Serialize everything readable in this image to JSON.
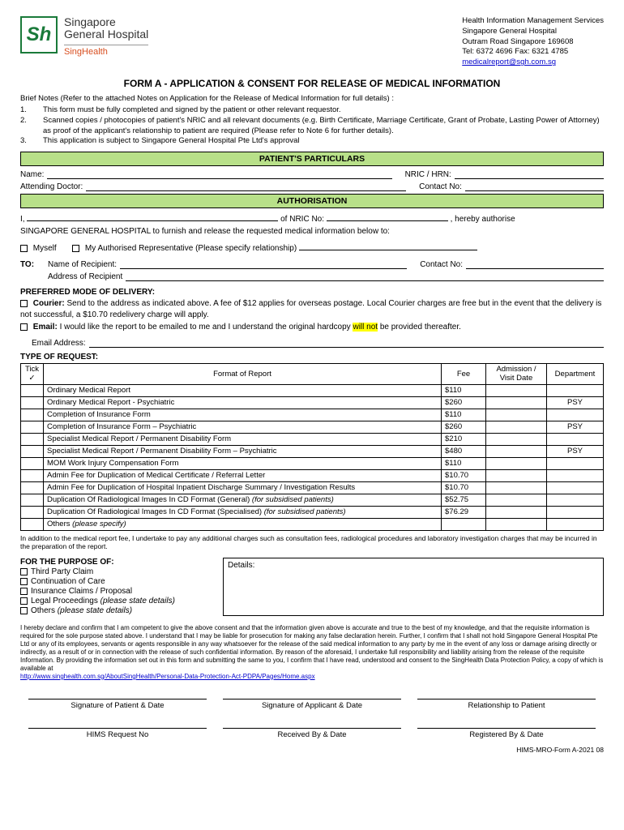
{
  "header": {
    "org_line1": "Singapore",
    "org_line2": "General Hospital",
    "org_sub": "SingHealth",
    "right_l1": "Health Information Management Services",
    "right_l2": "Singapore General Hospital",
    "right_l3": "Outram Road Singapore 169608",
    "right_l4": "Tel: 6372 4696 Fax: 6321 4785",
    "right_email": "medicalreport@sgh.com.sg"
  },
  "title": "FORM A - APPLICATION & CONSENT FOR RELEASE OF MEDICAL INFORMATION",
  "brief": {
    "intro": "Brief Notes (Refer to the attached Notes on Application for the Release of Medical Information for full details) :",
    "n1": "This form must be fully completed and signed by the patient or other relevant requestor.",
    "n2": "Scanned copies / photocopies of patient's NRIC and all relevant documents (e.g. Birth Certificate, Marriage Certificate, Grant of Probate, Lasting Power of Attorney) as proof of the applicant's relationship to patient are required (Please refer to Note 6 for further details).",
    "n3": "This application is subject to Singapore General Hospital Pte Ltd's approval"
  },
  "sections": {
    "particulars": "PATIENT'S PARTICULARS",
    "authorisation": "AUTHORISATION"
  },
  "labels": {
    "name": "Name:",
    "nric_hrn": "NRIC / HRN:",
    "attending": "Attending Doctor:",
    "contact": "Contact No:",
    "auth_prefix": "I,",
    "auth_of_nric": "of NRIC No:",
    "auth_suffix": ", hereby authorise",
    "auth_body": "SINGAPORE GENERAL HOSPITAL to furnish and release the requested medical information below to:",
    "myself": "Myself",
    "authrep": "My Authorised Representative (Please specify relationship)",
    "to": "TO:",
    "recipient_name": "Name of Recipient:",
    "recipient_addr": "Address of Recipient",
    "email_addr": "Email Address:"
  },
  "delivery": {
    "hdr": "PREFERRED MODE OF DELIVERY:",
    "courier_label": "Courier:",
    "courier_text": " Send to the address as indicated above. A fee of $12 applies for overseas postage. Local Courier charges are free but in the event that the delivery is not successful, a $10.70 redelivery charge will apply.",
    "email_label": "Email:",
    "email_text_a": " I would like the report to be emailed to me and I understand the original hardcopy ",
    "email_highlight": "will not",
    "email_text_b": " be provided thereafter."
  },
  "request": {
    "hdr": "TYPE OF REQUEST:",
    "cols": {
      "tick": "Tick\n✓",
      "format": "Format of Report",
      "fee": "Fee",
      "date": "Admission / Visit Date",
      "dept": "Department"
    },
    "rows": [
      {
        "format": "Ordinary Medical Report",
        "fee": "$110",
        "dept": ""
      },
      {
        "format": "Ordinary Medical Report  - Psychiatric",
        "fee": "$260",
        "dept": "PSY"
      },
      {
        "format": "Completion of Insurance Form",
        "fee": "$110",
        "dept": ""
      },
      {
        "format": "Completion of Insurance Form – Psychiatric",
        "fee": "$260",
        "dept": "PSY"
      },
      {
        "format": "Specialist Medical Report / Permanent Disability Form",
        "fee": "$210",
        "dept": ""
      },
      {
        "format": "Specialist Medical Report / Permanent Disability Form – Psychiatric",
        "fee": "$480",
        "dept": "PSY"
      },
      {
        "format": "MOM Work Injury Compensation Form",
        "fee": "$110",
        "dept": ""
      },
      {
        "format": "Admin Fee for Duplication of Medical Certificate / Referral Letter",
        "fee": "$10.70",
        "dept": ""
      },
      {
        "format": "Admin Fee for Duplication of Hospital Inpatient Discharge Summary / Investigation Results",
        "fee": "$10.70",
        "dept": ""
      },
      {
        "format": "Duplication Of Radiological Images In CD Format (General) ",
        "format_italic": "(for subsidised patients)",
        "fee": "$52.75",
        "dept": ""
      },
      {
        "format": "Duplication Of Radiological Images In CD Format (Specialised) ",
        "format_italic": "(for subsidised patients)",
        "fee": "$76.29",
        "dept": ""
      },
      {
        "format": "Others ",
        "format_italic": "(please specify)",
        "fee": "",
        "dept": ""
      }
    ],
    "note": "In addition to the medical report fee, I undertake to pay any additional charges such as consultation fees, radiological procedures and laboratory investigation charges that may be incurred in the preparation of the report."
  },
  "purpose": {
    "hdr": "FOR THE PURPOSE OF:",
    "items": [
      {
        "t": "Third Party Claim"
      },
      {
        "t": "Continuation of Care"
      },
      {
        "t": "Insurance Claims / Proposal"
      },
      {
        "t": "Legal Proceedings ",
        "i": "(please state details)"
      },
      {
        "t": "Others ",
        "i": "(please state details)"
      }
    ],
    "details_label": "Details:"
  },
  "declaration": {
    "text": "I hereby declare and confirm that I am competent to give the above consent and that the information given above is accurate and true to the best of my knowledge, and that the requisite information is required for the sole purpose stated above. I understand that I may be liable for prosecution for making any false declaration herein. Further, I confirm that I shall not hold Singapore General Hospital Pte Ltd or any of its employees, servants or agents responsible in any way whatsoever for the release of the said medical information to any party by me in the event of any loss or damage arising directly or indirectly, as a result of or in connection with the release of such confidential information. By reason of the aforesaid, I undertake full responsibility and liability arising from the release of the requisite Information. By providing the information set out in this form and submitting the same to you, I confirm that I have read, understood and consent to the SingHealth Data Protection Policy, a copy of which is available at",
    "link": "http://www.singhealth.com.sg/AboutSingHealth/Personal-Data-Protection-Act-PDPA/Pages/Home.aspx"
  },
  "signatures": {
    "row1": [
      "Signature of Patient & Date",
      "Signature of Applicant & Date",
      "Relationship to Patient"
    ],
    "row2": [
      "HIMS Request No",
      "Received By & Date",
      "Registered By & Date"
    ]
  },
  "footer": "HIMS-MRO-Form A-2021 08",
  "colors": {
    "section_bar_bg": "#b8e089",
    "logo_green": "#1a7a3a",
    "logo_orange": "#d84e1f",
    "highlight": "#ffff00",
    "link": "#0000cc"
  }
}
